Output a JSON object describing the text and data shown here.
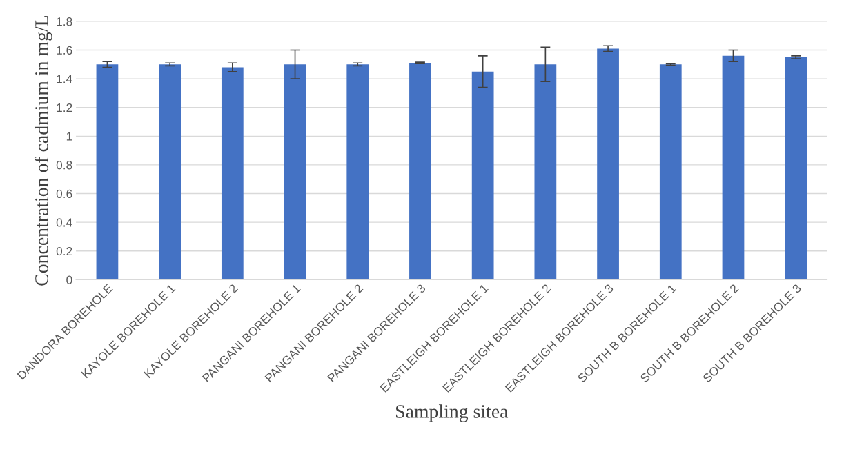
{
  "chart_data": {
    "type": "bar",
    "xlabel": "Sampling sitea",
    "ylabel": "Concentration of cadmium in mg/L",
    "categories": [
      "DANDORA BOREHOLE",
      "KAYOLE BOREHOLE 1",
      "KAYOLE BOREHOLE 2",
      "PANGANI BOREHOLE 1",
      "PANGANI BOREHOLE 2",
      "PANGANI BOREHOLE 3",
      "EASTLEIGH BOREHOLE 1",
      "EASTLEIGH BOREHOLE 2",
      "EASTLEIGH BOREHOLE 3",
      "SOUTH B BOREHOLE 1",
      "SOUTH B BOREHOLE 2",
      "SOUTH B BOREHOLE 3"
    ],
    "values": [
      1.5,
      1.5,
      1.48,
      1.5,
      1.5,
      1.51,
      1.45,
      1.5,
      1.61,
      1.5,
      1.56,
      1.55
    ],
    "errors": [
      0.02,
      0.01,
      0.03,
      0.1,
      0.01,
      0.005,
      0.11,
      0.12,
      0.02,
      0.005,
      0.04,
      0.01
    ],
    "color": "#4472c4",
    "ylim": [
      0,
      1.8
    ],
    "yticks": [
      0,
      0.2,
      0.4,
      0.6,
      0.8,
      1,
      1.2,
      1.4,
      1.6,
      1.8
    ],
    "grid": "y"
  }
}
